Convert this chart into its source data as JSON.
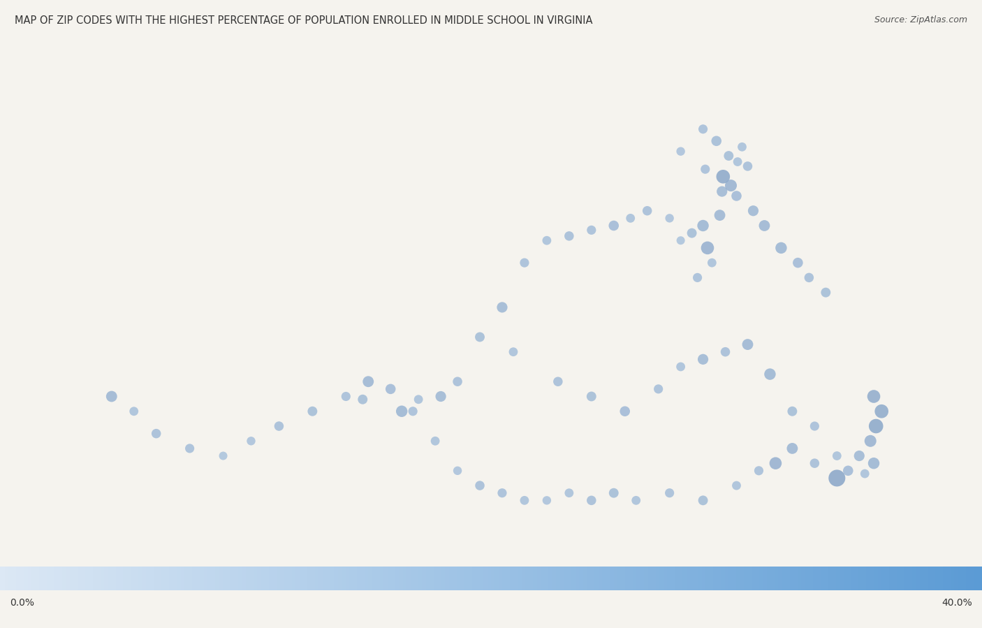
{
  "title": "MAP OF ZIP CODES WITH THE HIGHEST PERCENTAGE OF POPULATION ENROLLED IN MIDDLE SCHOOL IN VIRGINIA",
  "source": "Source: ZipAtlas.com",
  "cbar_min": "0.0%",
  "cbar_max": "40.0%",
  "colormap_start": "#e8f0f8",
  "colormap_end": "#1a5fa8",
  "background_color": "#f5f5f0",
  "virginia_fill": "#c5d8ee",
  "virginia_border": "#4a90d9",
  "map_extent": [
    -83.8,
    -75.0,
    36.3,
    39.8
  ],
  "figsize": [
    14.06,
    8.99
  ],
  "title_fontsize": 10.5,
  "source_fontsize": 9,
  "dot_color_low": "#6baed6",
  "dot_color_high": "#08306b",
  "dots": [
    {
      "lon": -77.46,
      "lat": 38.3,
      "size": 180,
      "value": 0.32
    },
    {
      "lon": -77.33,
      "lat": 38.68,
      "size": 120,
      "value": 0.25
    },
    {
      "lon": -77.48,
      "lat": 38.83,
      "size": 90,
      "value": 0.2
    },
    {
      "lon": -77.27,
      "lat": 38.92,
      "size": 100,
      "value": 0.22
    },
    {
      "lon": -77.19,
      "lat": 38.88,
      "size": 85,
      "value": 0.18
    },
    {
      "lon": -77.1,
      "lat": 38.85,
      "size": 95,
      "value": 0.21
    },
    {
      "lon": -77.32,
      "lat": 38.78,
      "size": 200,
      "value": 0.38
    },
    {
      "lon": -77.25,
      "lat": 38.72,
      "size": 150,
      "value": 0.3
    },
    {
      "lon": -77.2,
      "lat": 38.65,
      "size": 110,
      "value": 0.24
    },
    {
      "lon": -77.35,
      "lat": 38.52,
      "size": 130,
      "value": 0.27
    },
    {
      "lon": -77.5,
      "lat": 38.45,
      "size": 140,
      "value": 0.28
    },
    {
      "lon": -77.6,
      "lat": 38.4,
      "size": 100,
      "value": 0.22
    },
    {
      "lon": -77.42,
      "lat": 38.2,
      "size": 85,
      "value": 0.18
    },
    {
      "lon": -77.55,
      "lat": 38.1,
      "size": 90,
      "value": 0.2
    },
    {
      "lon": -77.7,
      "lat": 38.35,
      "size": 75,
      "value": 0.16
    },
    {
      "lon": -77.8,
      "lat": 38.5,
      "size": 80,
      "value": 0.17
    },
    {
      "lon": -78.0,
      "lat": 38.55,
      "size": 95,
      "value": 0.21
    },
    {
      "lon": -78.15,
      "lat": 38.5,
      "size": 85,
      "value": 0.19
    },
    {
      "lon": -78.3,
      "lat": 38.45,
      "size": 110,
      "value": 0.24
    },
    {
      "lon": -78.5,
      "lat": 38.42,
      "size": 90,
      "value": 0.2
    },
    {
      "lon": -78.7,
      "lat": 38.38,
      "size": 95,
      "value": 0.21
    },
    {
      "lon": -78.9,
      "lat": 38.35,
      "size": 85,
      "value": 0.19
    },
    {
      "lon": -79.1,
      "lat": 38.2,
      "size": 90,
      "value": 0.2
    },
    {
      "lon": -79.3,
      "lat": 37.9,
      "size": 120,
      "value": 0.25
    },
    {
      "lon": -79.5,
      "lat": 37.7,
      "size": 100,
      "value": 0.22
    },
    {
      "lon": -79.2,
      "lat": 37.6,
      "size": 85,
      "value": 0.19
    },
    {
      "lon": -78.8,
      "lat": 37.4,
      "size": 95,
      "value": 0.21
    },
    {
      "lon": -78.5,
      "lat": 37.3,
      "size": 100,
      "value": 0.22
    },
    {
      "lon": -78.2,
      "lat": 37.2,
      "size": 110,
      "value": 0.24
    },
    {
      "lon": -77.9,
      "lat": 37.35,
      "size": 90,
      "value": 0.2
    },
    {
      "lon": -77.7,
      "lat": 37.5,
      "size": 85,
      "value": 0.19
    },
    {
      "lon": -77.5,
      "lat": 37.55,
      "size": 120,
      "value": 0.25
    },
    {
      "lon": -77.3,
      "lat": 37.6,
      "size": 95,
      "value": 0.21
    },
    {
      "lon": -77.1,
      "lat": 37.65,
      "size": 130,
      "value": 0.27
    },
    {
      "lon": -76.9,
      "lat": 37.45,
      "size": 140,
      "value": 0.28
    },
    {
      "lon": -76.7,
      "lat": 37.2,
      "size": 100,
      "value": 0.22
    },
    {
      "lon": -76.5,
      "lat": 37.1,
      "size": 90,
      "value": 0.2
    },
    {
      "lon": -76.3,
      "lat": 36.9,
      "size": 85,
      "value": 0.19
    },
    {
      "lon": -76.2,
      "lat": 36.8,
      "size": 110,
      "value": 0.24
    },
    {
      "lon": -76.1,
      "lat": 36.9,
      "size": 120,
      "value": 0.25
    },
    {
      "lon": -76.0,
      "lat": 37.0,
      "size": 150,
      "value": 0.3
    },
    {
      "lon": -75.95,
      "lat": 37.1,
      "size": 220,
      "value": 0.39
    },
    {
      "lon": -75.9,
      "lat": 37.2,
      "size": 200,
      "value": 0.37
    },
    {
      "lon": -75.97,
      "lat": 37.3,
      "size": 180,
      "value": 0.35
    },
    {
      "lon": -76.5,
      "lat": 36.85,
      "size": 95,
      "value": 0.21
    },
    {
      "lon": -76.7,
      "lat": 36.95,
      "size": 130,
      "value": 0.27
    },
    {
      "lon": -76.3,
      "lat": 36.75,
      "size": 300,
      "value": 0.4
    },
    {
      "lon": -76.05,
      "lat": 36.78,
      "size": 85,
      "value": 0.18
    },
    {
      "lon": -75.97,
      "lat": 36.85,
      "size": 140,
      "value": 0.28
    },
    {
      "lon": -76.85,
      "lat": 36.85,
      "size": 160,
      "value": 0.32
    },
    {
      "lon": -77.0,
      "lat": 36.8,
      "size": 90,
      "value": 0.2
    },
    {
      "lon": -77.2,
      "lat": 36.7,
      "size": 85,
      "value": 0.19
    },
    {
      "lon": -77.5,
      "lat": 36.6,
      "size": 100,
      "value": 0.22
    },
    {
      "lon": -77.8,
      "lat": 36.65,
      "size": 90,
      "value": 0.2
    },
    {
      "lon": -78.1,
      "lat": 36.6,
      "size": 85,
      "value": 0.19
    },
    {
      "lon": -78.3,
      "lat": 36.65,
      "size": 100,
      "value": 0.22
    },
    {
      "lon": -78.5,
      "lat": 36.6,
      "size": 95,
      "value": 0.21
    },
    {
      "lon": -78.7,
      "lat": 36.65,
      "size": 85,
      "value": 0.19
    },
    {
      "lon": -78.9,
      "lat": 36.6,
      "size": 80,
      "value": 0.17
    },
    {
      "lon": -79.1,
      "lat": 36.6,
      "size": 85,
      "value": 0.19
    },
    {
      "lon": -79.3,
      "lat": 36.65,
      "size": 90,
      "value": 0.2
    },
    {
      "lon": -79.5,
      "lat": 36.7,
      "size": 95,
      "value": 0.21
    },
    {
      "lon": -79.7,
      "lat": 36.8,
      "size": 80,
      "value": 0.17
    },
    {
      "lon": -79.9,
      "lat": 37.0,
      "size": 85,
      "value": 0.19
    },
    {
      "lon": -80.1,
      "lat": 37.2,
      "size": 90,
      "value": 0.2
    },
    {
      "lon": -80.3,
      "lat": 37.35,
      "size": 110,
      "value": 0.24
    },
    {
      "lon": -80.5,
      "lat": 37.4,
      "size": 130,
      "value": 0.27
    },
    {
      "lon": -80.2,
      "lat": 37.2,
      "size": 140,
      "value": 0.28
    },
    {
      "lon": -79.85,
      "lat": 37.3,
      "size": 120,
      "value": 0.25
    },
    {
      "lon": -79.7,
      "lat": 37.4,
      "size": 95,
      "value": 0.21
    },
    {
      "lon": -80.05,
      "lat": 37.28,
      "size": 85,
      "value": 0.19
    },
    {
      "lon": -80.55,
      "lat": 37.28,
      "size": 100,
      "value": 0.22
    },
    {
      "lon": -80.7,
      "lat": 37.3,
      "size": 90,
      "value": 0.2
    },
    {
      "lon": -81.0,
      "lat": 37.2,
      "size": 100,
      "value": 0.22
    },
    {
      "lon": -81.3,
      "lat": 37.1,
      "size": 95,
      "value": 0.21
    },
    {
      "lon": -81.55,
      "lat": 37.0,
      "size": 80,
      "value": 0.17
    },
    {
      "lon": -81.8,
      "lat": 36.9,
      "size": 75,
      "value": 0.16
    },
    {
      "lon": -82.1,
      "lat": 36.95,
      "size": 90,
      "value": 0.2
    },
    {
      "lon": -82.4,
      "lat": 37.05,
      "size": 95,
      "value": 0.21
    },
    {
      "lon": -82.6,
      "lat": 37.2,
      "size": 85,
      "value": 0.19
    },
    {
      "lon": -82.8,
      "lat": 37.3,
      "size": 130,
      "value": 0.27
    },
    {
      "lon": -77.15,
      "lat": 38.98,
      "size": 85,
      "value": 0.18
    },
    {
      "lon": -77.5,
      "lat": 39.1,
      "size": 90,
      "value": 0.2
    },
    {
      "lon": -77.38,
      "lat": 39.02,
      "size": 110,
      "value": 0.23
    },
    {
      "lon": -77.7,
      "lat": 38.95,
      "size": 80,
      "value": 0.17
    },
    {
      "lon": -77.05,
      "lat": 38.55,
      "size": 120,
      "value": 0.25
    },
    {
      "lon": -76.95,
      "lat": 38.45,
      "size": 130,
      "value": 0.27
    },
    {
      "lon": -76.8,
      "lat": 38.3,
      "size": 140,
      "value": 0.28
    },
    {
      "lon": -76.65,
      "lat": 38.2,
      "size": 110,
      "value": 0.24
    },
    {
      "lon": -76.55,
      "lat": 38.1,
      "size": 95,
      "value": 0.21
    },
    {
      "lon": -76.4,
      "lat": 38.0,
      "size": 100,
      "value": 0.22
    }
  ]
}
